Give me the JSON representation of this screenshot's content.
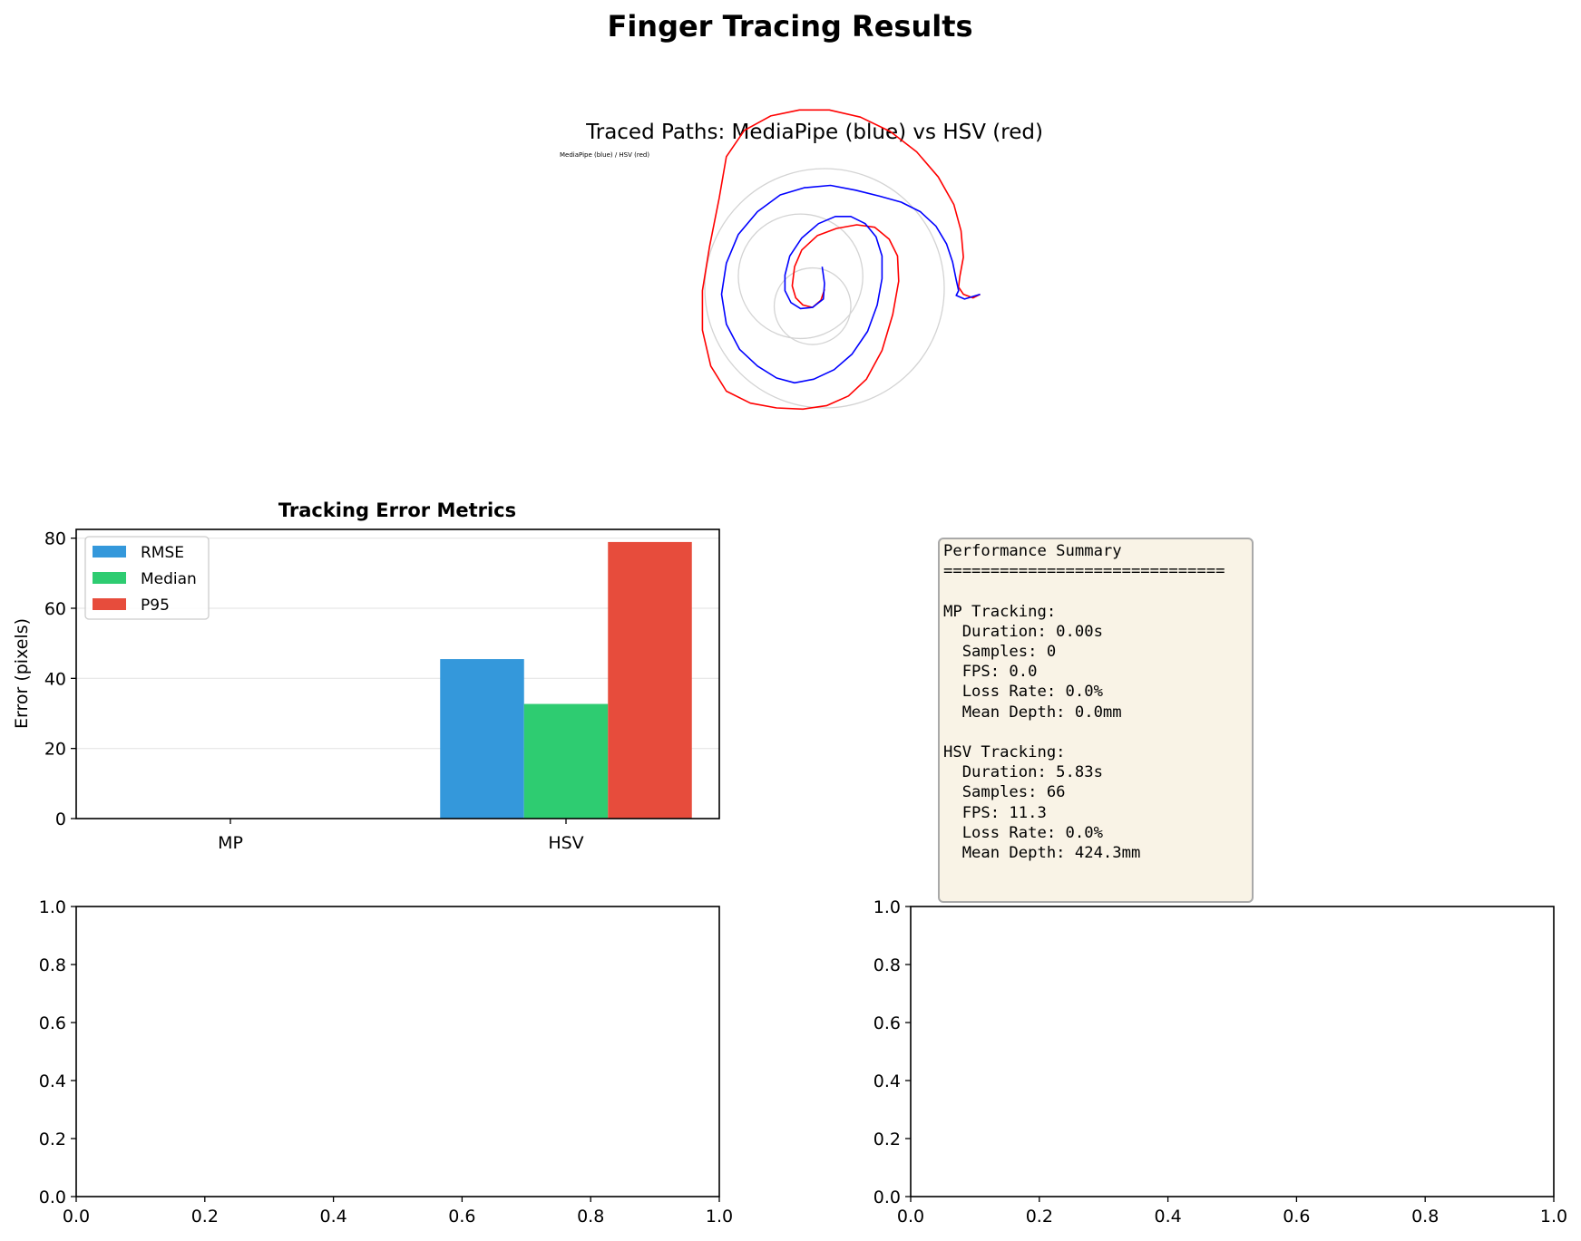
{
  "figure": {
    "suptitle": "Finger Tracing Results"
  },
  "chart_data": [
    {
      "type": "line",
      "title": "Traced Paths: MediaPipe (blue) vs HSV (red)",
      "inset_label": "MediaPipe (blue) / HSV (red)",
      "axes_visible": false,
      "reference_circles": [
        {
          "cx": 0,
          "cy": 0,
          "r": 1.0
        },
        {
          "cx": -0.2,
          "cy": 0.1,
          "r": 0.52
        },
        {
          "cx": -0.1,
          "cy": -0.15,
          "r": 0.32
        }
      ],
      "series": [
        {
          "name": "MediaPipe",
          "color": "#0000ff",
          "x": [
            -0.02,
            0.0,
            -0.01,
            -0.1,
            -0.2,
            -0.28,
            -0.33,
            -0.33,
            -0.29,
            -0.19,
            -0.05,
            0.09,
            0.22,
            0.34,
            0.43,
            0.48,
            0.48,
            0.44,
            0.36,
            0.23,
            0.08,
            -0.09,
            -0.25,
            -0.4,
            -0.56,
            -0.71,
            -0.82,
            -0.86,
            -0.82,
            -0.72,
            -0.56,
            -0.37,
            -0.17,
            0.05,
            0.26,
            0.46,
            0.64,
            0.8,
            0.93,
            1.02,
            1.07,
            1.1,
            1.12,
            1.1,
            1.17,
            1.3
          ],
          "y": [
            0.18,
            0.04,
            -0.09,
            -0.16,
            -0.17,
            -0.12,
            -0.02,
            0.11,
            0.27,
            0.42,
            0.54,
            0.6,
            0.6,
            0.54,
            0.43,
            0.27,
            0.08,
            -0.14,
            -0.36,
            -0.55,
            -0.68,
            -0.76,
            -0.79,
            -0.75,
            -0.65,
            -0.51,
            -0.3,
            -0.05,
            0.21,
            0.45,
            0.64,
            0.78,
            0.84,
            0.86,
            0.82,
            0.77,
            0.72,
            0.64,
            0.52,
            0.37,
            0.22,
            0.07,
            -0.02,
            -0.06,
            -0.09,
            -0.05
          ]
        },
        {
          "name": "HSV",
          "color": "#ff0000",
          "x": [
            0.0,
            -0.03,
            -0.1,
            -0.18,
            -0.24,
            -0.27,
            -0.25,
            -0.19,
            -0.06,
            0.1,
            0.27,
            0.42,
            0.54,
            0.61,
            0.62,
            0.57,
            0.48,
            0.35,
            0.2,
            0.02,
            -0.18,
            -0.4,
            -0.62,
            -0.82,
            -0.95,
            -1.02,
            -1.02,
            -0.96,
            -0.88,
            -0.82,
            -0.67,
            -0.45,
            -0.21,
            0.04,
            0.3,
            0.55,
            0.77,
            0.95,
            1.08,
            1.14,
            1.16,
            1.13,
            1.12,
            1.16,
            1.24,
            1.3
          ],
          "y": [
            -0.01,
            -0.1,
            -0.16,
            -0.14,
            -0.08,
            0.02,
            0.18,
            0.32,
            0.44,
            0.5,
            0.53,
            0.51,
            0.41,
            0.27,
            0.06,
            -0.22,
            -0.52,
            -0.76,
            -0.9,
            -0.98,
            -1.01,
            -1.0,
            -0.96,
            -0.86,
            -0.65,
            -0.35,
            -0.02,
            0.35,
            0.75,
            1.1,
            1.32,
            1.44,
            1.49,
            1.49,
            1.43,
            1.31,
            1.14,
            0.93,
            0.7,
            0.48,
            0.26,
            0.1,
            0.01,
            -0.05,
            -0.08,
            -0.05
          ]
        }
      ]
    },
    {
      "type": "bar",
      "title": "Tracking Error Metrics",
      "xlabel": "",
      "ylabel": "Error (pixels)",
      "categories": [
        "MP",
        "HSV"
      ],
      "ylim": [
        0,
        82.5
      ],
      "yticks": [
        "0",
        "20",
        "40",
        "60",
        "80"
      ],
      "grid": "y",
      "legend": "upper-left",
      "series": [
        {
          "name": "RMSE",
          "color": "#3498db",
          "values": [
            0,
            45.5
          ]
        },
        {
          "name": "Median",
          "color": "#2ecc71",
          "values": [
            0,
            32.7
          ]
        },
        {
          "name": "P95",
          "color": "#e74c3c",
          "values": [
            0,
            78.9
          ]
        }
      ]
    },
    {
      "type": "line",
      "title": "",
      "xlim": [
        0,
        1
      ],
      "ylim": [
        0,
        1
      ],
      "xticks": [
        "0.0",
        "0.2",
        "0.4",
        "0.6",
        "0.8",
        "1.0"
      ],
      "yticks": [
        "0.0",
        "0.2",
        "0.4",
        "0.6",
        "0.8",
        "1.0"
      ],
      "series": []
    },
    {
      "type": "line",
      "title": "",
      "xlim": [
        0,
        1
      ],
      "ylim": [
        0,
        1
      ],
      "xticks": [
        "0.0",
        "0.2",
        "0.4",
        "0.6",
        "0.8",
        "1.0"
      ],
      "yticks": [
        "0.0",
        "0.2",
        "0.4",
        "0.6",
        "0.8",
        "1.0"
      ],
      "series": []
    }
  ],
  "summary": {
    "lines": [
      "Performance Summary",
      "==============================",
      "",
      "MP Tracking:",
      "  Duration: 0.00s",
      "  Samples: 0",
      "  FPS: 0.0",
      "  Loss Rate: 0.0%",
      "  Mean Depth: 0.0mm",
      "",
      "HSV Tracking:",
      "  Duration: 5.83s",
      "  Samples: 66",
      "  FPS: 11.3",
      "  Loss Rate: 0.0%",
      "  Mean Depth: 424.3mm"
    ]
  }
}
